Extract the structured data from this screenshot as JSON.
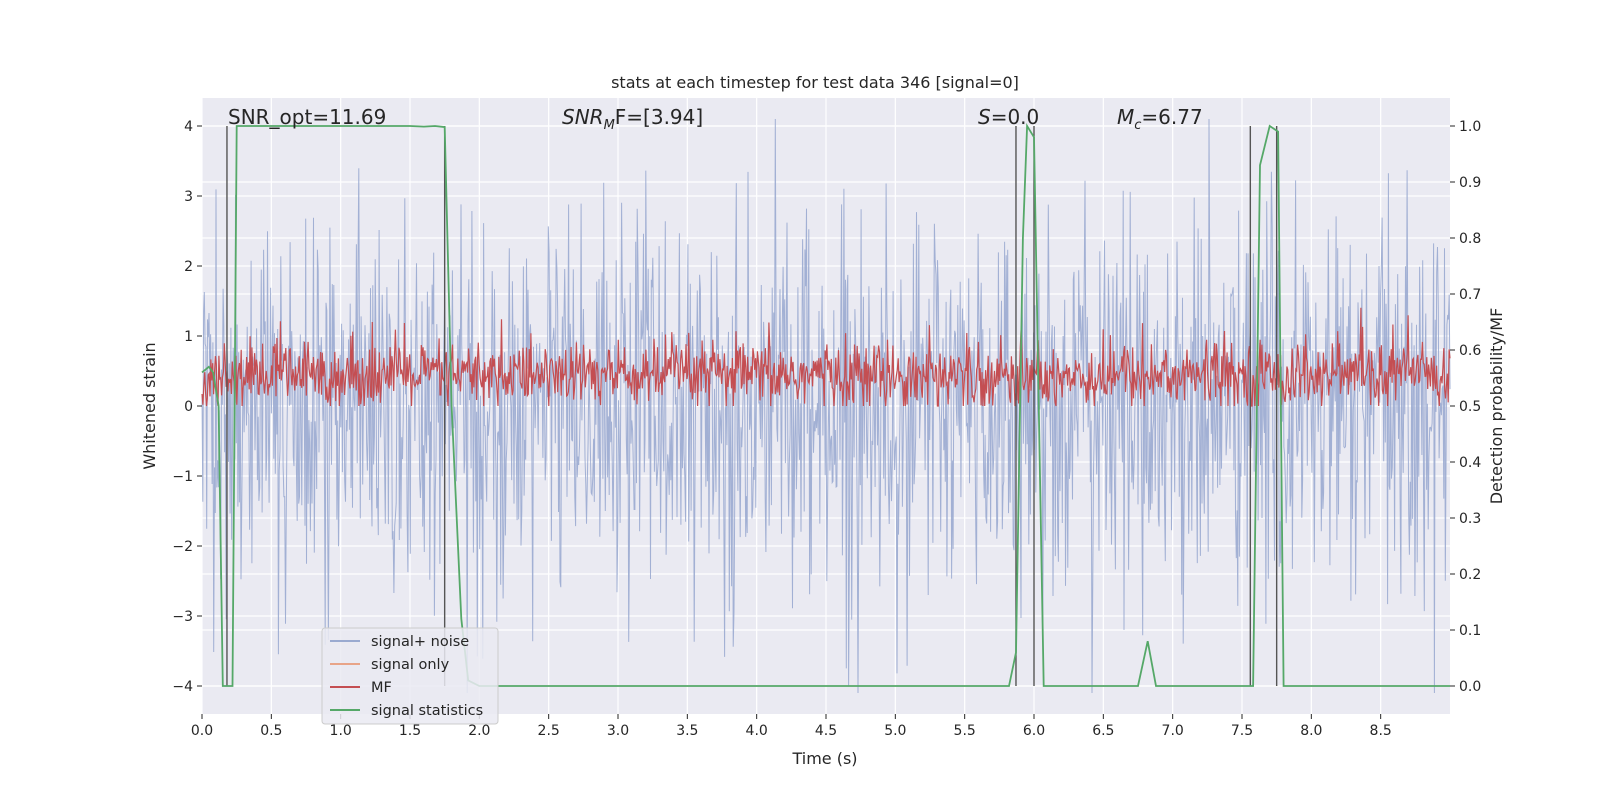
{
  "chart_data": {
    "type": "line",
    "title": "stats at each timestep for test data 346 [signal=0]",
    "xlabel": "Time (s)",
    "ylabel_left": "Whitened strain",
    "ylabel_right": "Detection probability/MF",
    "xlim": [
      0.0,
      9.0
    ],
    "ylim_left": [
      -4.4,
      4.4
    ],
    "ylim_right": [
      -0.05,
      1.05
    ],
    "xticks": [
      "0.0",
      "0.5",
      "1.0",
      "1.5",
      "2.0",
      "2.5",
      "3.0",
      "3.5",
      "4.0",
      "4.5",
      "5.0",
      "5.5",
      "6.0",
      "6.5",
      "7.0",
      "7.5",
      "8.0",
      "8.5"
    ],
    "xtick_values": [
      0.0,
      0.5,
      1.0,
      1.5,
      2.0,
      2.5,
      3.0,
      3.5,
      4.0,
      4.5,
      5.0,
      5.5,
      6.0,
      6.5,
      7.0,
      7.5,
      8.0,
      8.5
    ],
    "yticks_left": [
      "−4",
      "−3",
      "−2",
      "−1",
      "0",
      "1",
      "2",
      "3",
      "4"
    ],
    "ytick_values_left": [
      -4,
      -3,
      -2,
      -1,
      0,
      1,
      2,
      3,
      4
    ],
    "yticks_right": [
      "0.0",
      "0.1",
      "0.2",
      "0.3",
      "0.4",
      "0.5",
      "0.6",
      "0.7",
      "0.8",
      "0.9",
      "1.0"
    ],
    "ytick_values_right": [
      0.0,
      0.1,
      0.2,
      0.3,
      0.4,
      0.5,
      0.6,
      0.7,
      0.8,
      0.9,
      1.0
    ],
    "grid": true,
    "legend_position": "lower-left",
    "annotations": [
      {
        "key": "snr_opt",
        "text": "SNR_opt=11.69"
      },
      {
        "key": "snr_mf",
        "text": "SNR",
        "sub": "M",
        "rest": "F=[3.94]"
      },
      {
        "key": "s",
        "text": "S",
        "rest": "=0.0"
      },
      {
        "key": "mc",
        "text": "M",
        "sub": "c",
        "rest": "=6.77"
      }
    ],
    "series": [
      {
        "name": "signal+ noise",
        "color": "#9aaad0",
        "axis": "left",
        "description": "whitened strain noise, amplitude roughly ±2.5, peaks to ±4"
      },
      {
        "name": "signal only",
        "color": "#e8a488",
        "axis": "left",
        "values": []
      },
      {
        "name": "MF",
        "color": "#c44e52",
        "axis": "right",
        "description": "matched filter output, fluctuating roughly 0.5 to 0.65"
      },
      {
        "name": "signal statistics",
        "color": "#55a868",
        "axis": "right",
        "x": [
          0.0,
          0.05,
          0.08,
          0.12,
          0.15,
          0.17,
          0.22,
          0.25,
          0.28,
          0.35,
          1.0,
          1.5,
          1.6,
          1.68,
          1.75,
          1.8,
          1.87,
          1.92,
          2.0,
          5.5,
          5.82,
          5.87,
          5.92,
          5.95,
          6.0,
          6.07,
          6.2,
          6.5,
          6.75,
          6.82,
          6.88,
          6.95,
          7.5,
          7.58,
          7.63,
          7.7,
          7.76,
          7.8,
          7.85,
          9.0
        ],
        "values": [
          0.56,
          0.57,
          0.56,
          0.5,
          0.0,
          0.0,
          0.0,
          1.0,
          1.0,
          1.0,
          1.0,
          1.0,
          0.999,
          1.0,
          0.998,
          0.5,
          0.12,
          0.01,
          0.0,
          0.0,
          0.0,
          0.06,
          0.8,
          1.0,
          0.98,
          0.0,
          0.0,
          0.0,
          0.0,
          0.08,
          0.0,
          0.0,
          0.0,
          0.0,
          0.93,
          1.0,
          0.99,
          0.0,
          0.0,
          0.0
        ]
      }
    ],
    "vertical_markers_x": [
      0.18,
      1.75,
      5.87,
      6.0,
      7.56,
      7.75
    ]
  }
}
